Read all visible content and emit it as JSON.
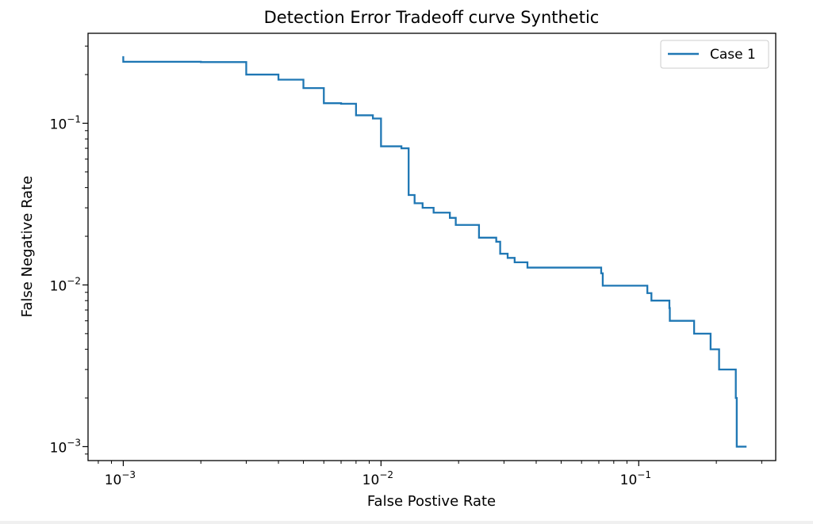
{
  "chart_data": {
    "type": "line",
    "title": "Detection Error Tradeoff curve Synthetic",
    "xlabel": "False Postive Rate",
    "ylabel": "False Negative Rate",
    "xscale": "log",
    "yscale": "log",
    "xlim": [
      0.00073,
      0.34
    ],
    "ylim": [
      0.00082,
      0.36
    ],
    "grid": false,
    "legend": {
      "placement": "top-right"
    },
    "x_ticks": [
      {
        "base": "10",
        "exp": "−3",
        "value": 0.001
      },
      {
        "base": "10",
        "exp": "−2",
        "value": 0.01
      },
      {
        "base": "10",
        "exp": "−1",
        "value": 0.1
      }
    ],
    "y_ticks": [
      {
        "base": "10",
        "exp": "−3",
        "value": 0.001
      },
      {
        "base": "10",
        "exp": "−2",
        "value": 0.01
      },
      {
        "base": "10",
        "exp": "−1",
        "value": 0.1
      }
    ],
    "series": [
      {
        "name": "Case 1",
        "color": "#1f77b4",
        "step": true,
        "x": [
          0.001,
          0.001,
          0.002,
          0.003,
          0.004,
          0.005,
          0.006,
          0.007,
          0.008,
          0.0093,
          0.01,
          0.012,
          0.0128,
          0.0135,
          0.0145,
          0.016,
          0.0185,
          0.0195,
          0.024,
          0.028,
          0.029,
          0.031,
          0.033,
          0.037,
          0.0715,
          0.0725,
          0.108,
          0.112,
          0.1315,
          0.132,
          0.164,
          0.19,
          0.205,
          0.238,
          0.24,
          0.262
        ],
        "y": [
          0.26,
          0.24,
          0.239,
          0.2,
          0.186,
          0.165,
          0.133,
          0.132,
          0.112,
          0.107,
          0.072,
          0.07,
          0.036,
          0.032,
          0.03,
          0.028,
          0.026,
          0.0235,
          0.0196,
          0.0185,
          0.0156,
          0.0147,
          0.0138,
          0.0128,
          0.0118,
          0.0099,
          0.0089,
          0.008,
          0.0072,
          0.006,
          0.005,
          0.004,
          0.003,
          0.002,
          0.001,
          0.001
        ]
      }
    ]
  }
}
